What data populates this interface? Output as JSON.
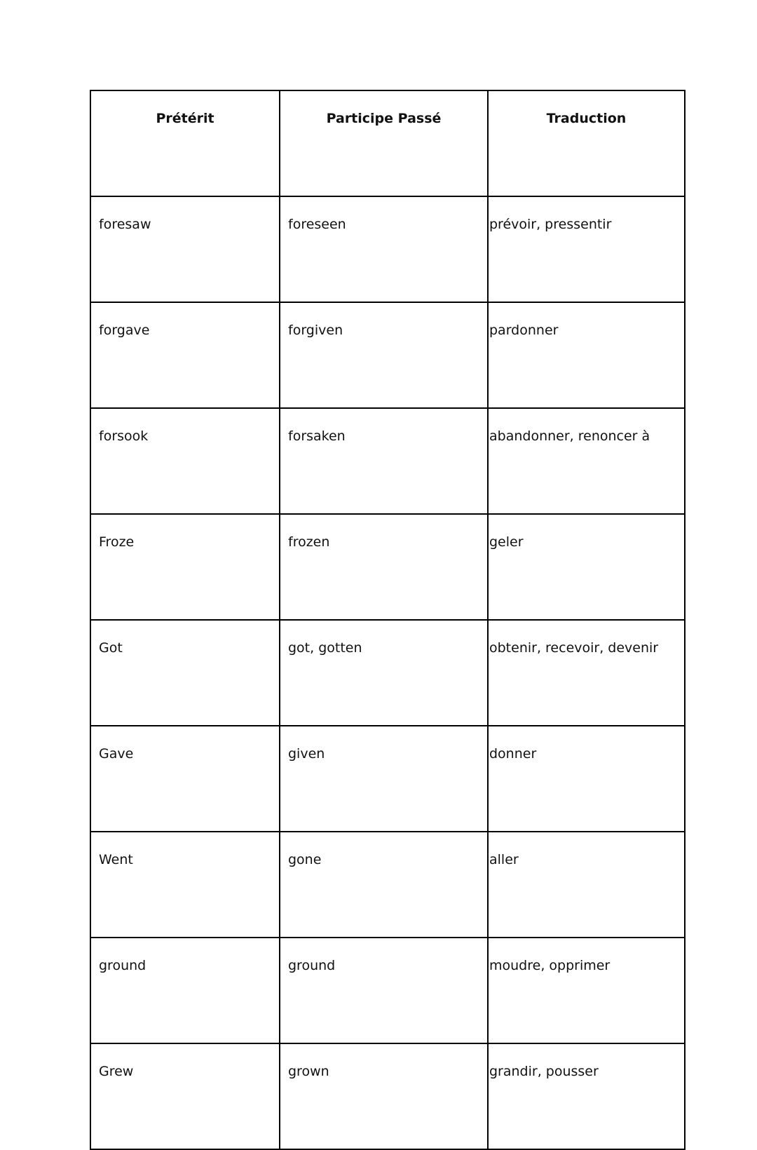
{
  "headers": [
    "Prétérit",
    "Participe Passé",
    "Traduction"
  ],
  "rows": [
    [
      "foresaw",
      "foreseen",
      "prévoir, pressentir"
    ],
    [
      "forgave",
      "forgiven",
      "pardonner"
    ],
    [
      "forsook",
      "forsaken",
      "abandonner, renoncer à"
    ],
    [
      "Froze",
      "frozen",
      "geler"
    ],
    [
      "Got",
      "got, gotten",
      "obtenir, recevoir, devenir"
    ],
    [
      "Gave",
      "given",
      "donner"
    ],
    [
      "Went",
      "gone",
      "aller"
    ],
    [
      "ground",
      "ground",
      "moudre, opprimer"
    ],
    [
      "Grew",
      "grown",
      "grandir, pousser"
    ]
  ]
}
